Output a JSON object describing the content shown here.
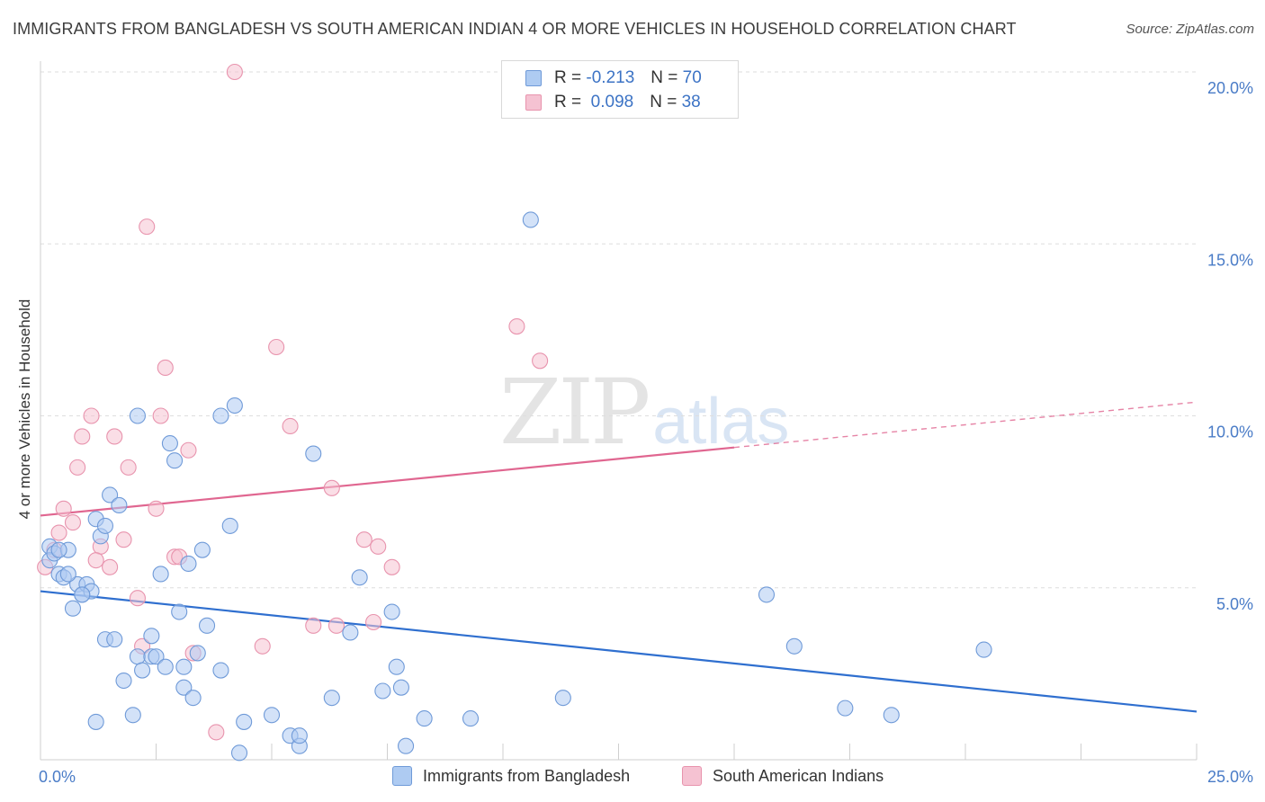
{
  "header": {
    "title": "IMMIGRANTS FROM BANGLADESH VS SOUTH AMERICAN INDIAN 4 OR MORE VEHICLES IN HOUSEHOLD CORRELATION CHART",
    "source": "Source: ZipAtlas.com"
  },
  "watermark": {
    "zip": "ZIP",
    "atlas": "atlas"
  },
  "legend": {
    "rows": [
      {
        "r_label": "R =",
        "r_value": "-0.213",
        "n_label": "N =",
        "n_value": "70"
      },
      {
        "r_label": "R =",
        "r_value": "0.098",
        "n_label": "N =",
        "n_value": "38"
      }
    ]
  },
  "colors": {
    "blue_fill": "#aecbf2",
    "blue_stroke": "#6f9ad8",
    "blue_line": "#2f6fcf",
    "pink_fill": "#f5c2d2",
    "pink_stroke": "#e893ad",
    "pink_line": "#e06690",
    "tick_text": "#4a7cc7",
    "grid": "#dedede"
  },
  "chart_data": {
    "type": "scatter",
    "title": "IMMIGRANTS FROM BANGLADESH VS SOUTH AMERICAN INDIAN 4 OR MORE VEHICLES IN HOUSEHOLD CORRELATION CHART",
    "xlabel": "",
    "ylabel": "4 or more Vehicles in Household",
    "xlim": [
      0,
      25
    ],
    "ylim": [
      0,
      20
    ],
    "x_tick_labels": [
      "0.0%",
      "25.0%"
    ],
    "y_ticks": [
      5,
      10,
      15,
      20
    ],
    "y_tick_labels": [
      "5.0%",
      "10.0%",
      "15.0%",
      "20.0%"
    ],
    "grid": true,
    "legend_position": "bottom",
    "series": [
      {
        "name": "Immigrants from Bangladesh",
        "color": "#aecbf2",
        "r": -0.213,
        "n": 70,
        "trend": {
          "x": [
            0,
            25
          ],
          "y": [
            4.9,
            1.4
          ],
          "solid_until": 25
        },
        "points": [
          [
            0.2,
            6.2
          ],
          [
            0.2,
            5.8
          ],
          [
            0.3,
            6.0
          ],
          [
            0.4,
            5.4
          ],
          [
            0.5,
            5.3
          ],
          [
            0.6,
            6.1
          ],
          [
            0.7,
            4.4
          ],
          [
            0.8,
            5.1
          ],
          [
            0.9,
            4.8
          ],
          [
            1.0,
            5.1
          ],
          [
            1.1,
            4.9
          ],
          [
            1.2,
            7.0
          ],
          [
            1.3,
            6.5
          ],
          [
            1.5,
            7.7
          ],
          [
            1.4,
            6.8
          ],
          [
            1.7,
            7.4
          ],
          [
            1.4,
            3.5
          ],
          [
            1.6,
            3.5
          ],
          [
            1.8,
            2.3
          ],
          [
            2.0,
            1.3
          ],
          [
            2.1,
            10.0
          ],
          [
            2.1,
            3.0
          ],
          [
            2.2,
            2.6
          ],
          [
            2.4,
            3.6
          ],
          [
            2.4,
            3.0
          ],
          [
            2.5,
            3.0
          ],
          [
            2.6,
            5.4
          ],
          [
            2.7,
            2.7
          ],
          [
            2.8,
            9.2
          ],
          [
            2.9,
            8.7
          ],
          [
            3.0,
            4.3
          ],
          [
            3.1,
            2.7
          ],
          [
            3.1,
            2.1
          ],
          [
            3.3,
            1.8
          ],
          [
            3.2,
            5.7
          ],
          [
            3.4,
            3.1
          ],
          [
            3.5,
            6.1
          ],
          [
            3.6,
            3.9
          ],
          [
            3.9,
            10.0
          ],
          [
            3.9,
            2.6
          ],
          [
            4.2,
            10.3
          ],
          [
            4.1,
            6.8
          ],
          [
            4.3,
            0.2
          ],
          [
            4.4,
            1.1
          ],
          [
            5.0,
            1.3
          ],
          [
            5.4,
            0.7
          ],
          [
            5.6,
            0.4
          ],
          [
            5.6,
            0.7
          ],
          [
            5.9,
            8.9
          ],
          [
            6.3,
            1.8
          ],
          [
            6.7,
            3.7
          ],
          [
            6.9,
            5.3
          ],
          [
            7.4,
            2.0
          ],
          [
            7.6,
            4.3
          ],
          [
            7.7,
            2.7
          ],
          [
            7.8,
            2.1
          ],
          [
            7.9,
            0.4
          ],
          [
            8.3,
            1.2
          ],
          [
            9.3,
            1.2
          ],
          [
            10.6,
            15.7
          ],
          [
            11.3,
            1.8
          ],
          [
            15.7,
            4.8
          ],
          [
            16.3,
            3.3
          ],
          [
            17.4,
            1.5
          ],
          [
            18.4,
            1.3
          ],
          [
            20.4,
            3.2
          ],
          [
            1.2,
            1.1
          ],
          [
            0.9,
            4.8
          ],
          [
            0.6,
            5.4
          ],
          [
            0.4,
            6.1
          ]
        ]
      },
      {
        "name": "South American Indians",
        "color": "#f5c2d2",
        "r": 0.098,
        "n": 38,
        "trend": {
          "x": [
            0,
            25
          ],
          "y": [
            7.1,
            10.4
          ],
          "solid_until": 15
        },
        "points": [
          [
            0.1,
            5.6
          ],
          [
            0.3,
            6.1
          ],
          [
            0.4,
            6.6
          ],
          [
            0.5,
            7.3
          ],
          [
            0.7,
            6.9
          ],
          [
            0.8,
            8.5
          ],
          [
            0.9,
            9.4
          ],
          [
            1.1,
            10.0
          ],
          [
            1.3,
            6.2
          ],
          [
            1.2,
            5.8
          ],
          [
            1.5,
            5.6
          ],
          [
            1.6,
            9.4
          ],
          [
            1.8,
            6.4
          ],
          [
            1.9,
            8.5
          ],
          [
            2.1,
            4.7
          ],
          [
            2.2,
            3.3
          ],
          [
            2.3,
            15.5
          ],
          [
            2.5,
            7.3
          ],
          [
            2.6,
            10.0
          ],
          [
            2.7,
            11.4
          ],
          [
            2.9,
            5.9
          ],
          [
            3.0,
            5.9
          ],
          [
            3.2,
            9.0
          ],
          [
            3.3,
            3.1
          ],
          [
            3.8,
            0.8
          ],
          [
            4.2,
            20.0
          ],
          [
            4.8,
            3.3
          ],
          [
            5.1,
            12.0
          ],
          [
            5.4,
            9.7
          ],
          [
            5.9,
            3.9
          ],
          [
            6.3,
            7.9
          ],
          [
            6.4,
            3.9
          ],
          [
            7.0,
            6.4
          ],
          [
            7.2,
            4.0
          ],
          [
            7.3,
            6.2
          ],
          [
            7.6,
            5.6
          ],
          [
            10.3,
            12.6
          ],
          [
            10.8,
            11.6
          ]
        ]
      }
    ]
  },
  "bottom_legend": [
    {
      "label": "Immigrants from Bangladesh"
    },
    {
      "label": "South American Indians"
    }
  ]
}
